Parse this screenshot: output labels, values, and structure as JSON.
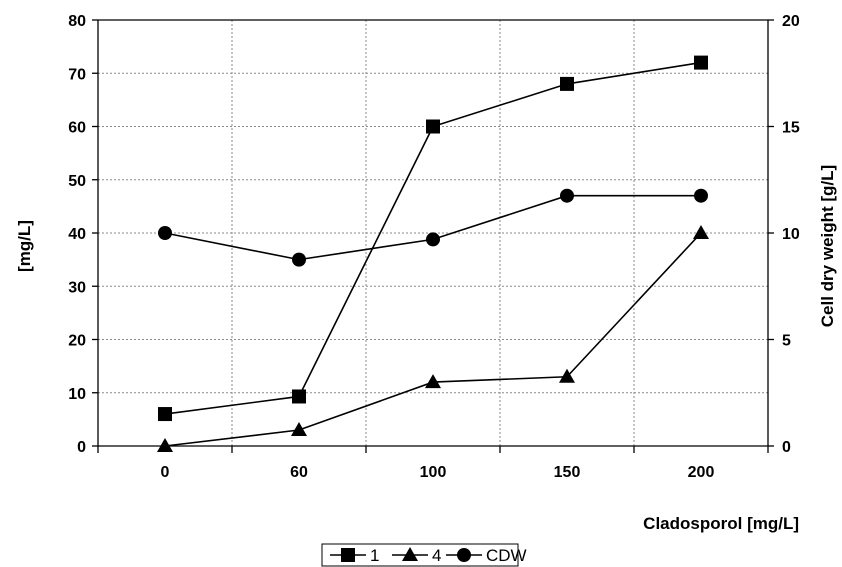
{
  "chart_data": {
    "type": "line",
    "title": "",
    "xlabel": "Cladosporol  [mg/L]",
    "ylabel": "[mg/L]",
    "y2label": "Cell dry weight [g/L]",
    "categories": [
      "0",
      "60",
      "100",
      "150",
      "200"
    ],
    "ylim": [
      0,
      80
    ],
    "yticks": [
      0,
      10,
      20,
      30,
      40,
      50,
      60,
      70,
      80
    ],
    "y2lim": [
      0,
      20
    ],
    "y2ticks": [
      0,
      5,
      10,
      15,
      20
    ],
    "grid": true,
    "legend": "bottom",
    "series": [
      {
        "name": "1",
        "marker": "square",
        "axis": "left",
        "values": [
          6,
          9.3,
          60,
          68,
          72
        ]
      },
      {
        "name": "4",
        "marker": "triangle",
        "axis": "left",
        "values": [
          0,
          3,
          12,
          13,
          40
        ]
      },
      {
        "name": "CDW",
        "marker": "circle",
        "axis": "right",
        "values": [
          10,
          8.75,
          9.7,
          11.75,
          11.75
        ]
      }
    ],
    "colors": {
      "line": "#000000",
      "grid": "#8a8a8a",
      "background": "#ffffff"
    }
  }
}
